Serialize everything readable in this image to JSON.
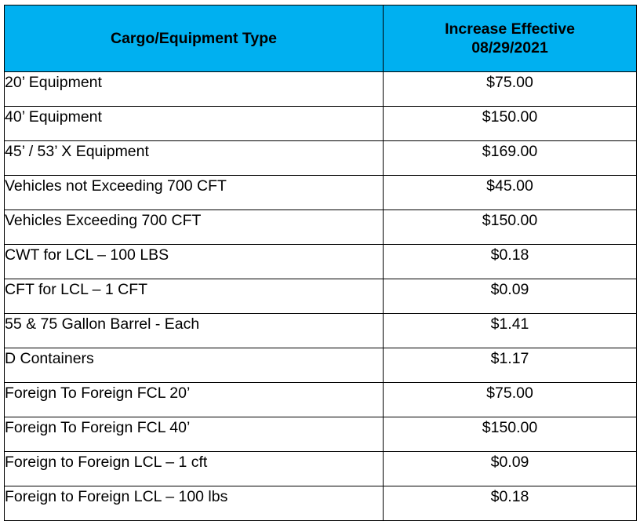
{
  "table": {
    "header": {
      "type_label": "Cargo/Equipment Type",
      "increase_line1": "Increase Effective",
      "increase_line2": "08/29/2021"
    },
    "rows": [
      {
        "type": "20’ Equipment",
        "rate": "$75.00"
      },
      {
        "type": "40’ Equipment",
        "rate": "$150.00"
      },
      {
        "type": "45’ / 53’ X Equipment",
        "rate": "$169.00"
      },
      {
        "type": "Vehicles not Exceeding 700 CFT",
        "rate": "$45.00"
      },
      {
        "type": "Vehicles Exceeding 700 CFT",
        "rate": "$150.00"
      },
      {
        "type": "CWT for LCL – 100 LBS",
        "rate": "$0.18"
      },
      {
        "type": "CFT for LCL – 1 CFT",
        "rate": "$0.09"
      },
      {
        "type": "55 & 75 Gallon Barrel - Each",
        "rate": "$1.41"
      },
      {
        "type": "D Containers",
        "rate": "$1.17"
      },
      {
        "type": "Foreign To Foreign FCL 20’",
        "rate": "$75.00"
      },
      {
        "type": "Foreign To Foreign FCL 40’",
        "rate": "$150.00"
      },
      {
        "type": "Foreign to Foreign LCL – 1 cft",
        "rate": "$0.09"
      },
      {
        "type": "Foreign to Foreign LCL – 100 lbs",
        "rate": "$0.18"
      }
    ],
    "colors": {
      "header_background": "#00b0f0",
      "border": "#000000",
      "text": "#000000"
    }
  }
}
